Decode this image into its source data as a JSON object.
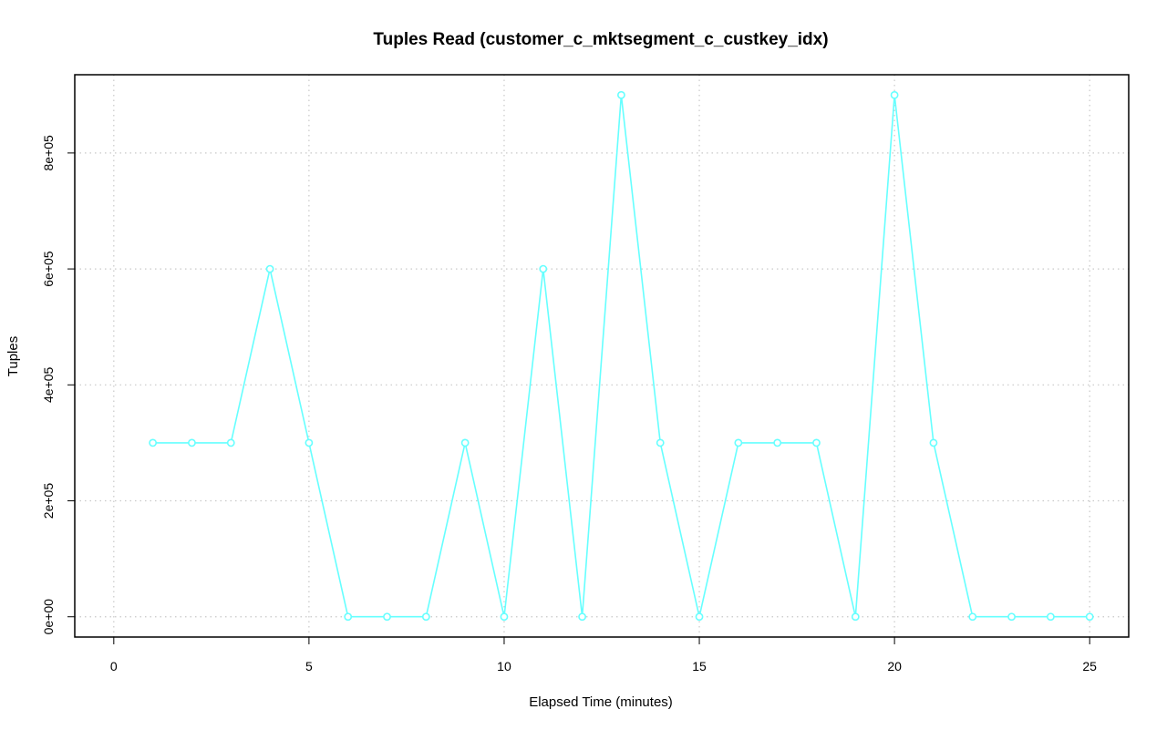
{
  "chart_data": {
    "type": "line",
    "title": "Tuples Read (customer_c_mktsegment_c_custkey_idx)",
    "xlabel": "Elapsed Time (minutes)",
    "ylabel": "Tuples",
    "xlim": [
      -1,
      26
    ],
    "ylim": [
      -35000,
      935000
    ],
    "x_ticks": [
      0,
      5,
      10,
      15,
      20,
      25
    ],
    "x_tick_labels": [
      "0",
      "5",
      "10",
      "15",
      "20",
      "25"
    ],
    "y_ticks": [
      0,
      200000,
      400000,
      600000,
      800000
    ],
    "y_tick_labels": [
      "0e+00",
      "2e+05",
      "4e+05",
      "6e+05",
      "8e+05"
    ],
    "grid": true,
    "grid_style": "dotted",
    "marker": "open-circle",
    "color": "#66ffff",
    "series": [
      {
        "x": [
          1,
          2,
          3,
          4,
          5,
          6,
          7,
          8,
          9,
          10,
          11,
          12,
          13,
          14,
          15,
          16,
          17,
          18,
          19,
          20,
          21,
          22,
          23,
          24,
          25
        ],
        "values": [
          300000,
          300000,
          300000,
          600000,
          300000,
          0,
          0,
          0,
          300000,
          0,
          600000,
          0,
          900000,
          300000,
          0,
          300000,
          300000,
          300000,
          0,
          900000,
          300000,
          0,
          0,
          0,
          0
        ]
      }
    ]
  }
}
